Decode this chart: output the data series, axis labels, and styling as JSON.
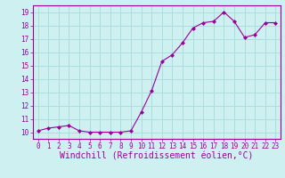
{
  "x": [
    0,
    1,
    2,
    3,
    4,
    5,
    6,
    7,
    8,
    9,
    10,
    11,
    12,
    13,
    14,
    15,
    16,
    17,
    18,
    19,
    20,
    21,
    22,
    23
  ],
  "y": [
    10.1,
    10.3,
    10.4,
    10.5,
    10.1,
    10.0,
    10.0,
    10.0,
    10.0,
    10.1,
    11.5,
    13.1,
    15.3,
    15.8,
    16.7,
    17.8,
    18.2,
    18.3,
    19.0,
    18.3,
    17.1,
    17.3,
    18.2,
    18.2
  ],
  "line_color": "#990099",
  "marker": "D",
  "marker_size": 2,
  "bg_color": "#cff0f0",
  "grid_color": "#aadddd",
  "xlabel": "Windchill (Refroidissement éolien,°C)",
  "ylabel": "",
  "title": "",
  "xlim": [
    -0.5,
    23.5
  ],
  "ylim": [
    9.5,
    19.5
  ],
  "yticks": [
    10,
    11,
    12,
    13,
    14,
    15,
    16,
    17,
    18,
    19
  ],
  "xticks": [
    0,
    1,
    2,
    3,
    4,
    5,
    6,
    7,
    8,
    9,
    10,
    11,
    12,
    13,
    14,
    15,
    16,
    17,
    18,
    19,
    20,
    21,
    22,
    23
  ],
  "tick_color": "#990099",
  "label_color": "#990099",
  "tick_fontsize": 5.5,
  "xlabel_fontsize": 7.0
}
